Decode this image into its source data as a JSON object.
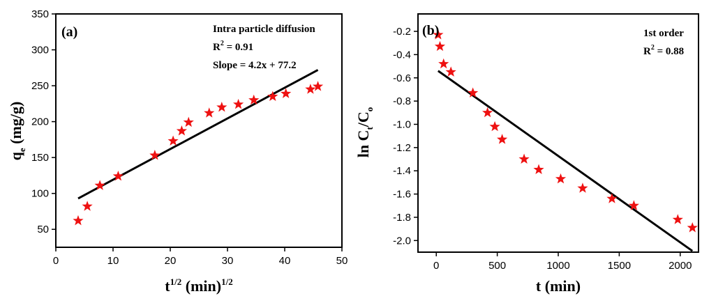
{
  "chart_data": [
    {
      "type": "scatter",
      "panel_label": "(a)",
      "xlabel_base": "t",
      "xlabel_sup": "1/2",
      "xlabel_rest": " (min)",
      "xlabel_sup2": "1/2",
      "ylabel_base": "q",
      "ylabel_sub": "e",
      "ylabel_rest": " (mg/g)",
      "xlim": [
        0,
        50
      ],
      "ylim": [
        25,
        350
      ],
      "xticks": [
        0,
        10,
        20,
        30,
        40,
        50
      ],
      "yticks": [
        50,
        100,
        150,
        200,
        250,
        300,
        350
      ],
      "annotation": {
        "title": "Intra particle diffusion",
        "r2_label": "R",
        "r2_sup": "2",
        "r2_value": " = 0.91",
        "slope_text": "Slope = 4.2x + 77.2"
      },
      "series": [
        {
          "x": [
            3.9,
            5.5,
            7.7,
            10.9,
            17.3,
            20.5,
            22.0,
            23.2,
            26.8,
            29.0,
            31.9,
            34.6,
            37.9,
            40.2,
            44.5,
            45.8
          ],
          "y": [
            62,
            82,
            111,
            124,
            153,
            173,
            187,
            199,
            212,
            220,
            224,
            230,
            235,
            239,
            245,
            249
          ]
        }
      ],
      "fit_line": {
        "x": [
          3.9,
          45.8
        ],
        "y": [
          93,
          272
        ]
      }
    },
    {
      "type": "scatter",
      "panel_label": "(b)",
      "xlabel_text": "t (min)",
      "ylabel_base": "ln C",
      "ylabel_sub1": "t",
      "ylabel_mid": "/C",
      "ylabel_sub2": "o",
      "xlim": [
        -150,
        2150
      ],
      "ylim": [
        -2.1,
        -0.05
      ],
      "xticks": [
        0,
        500,
        1000,
        1500,
        2000
      ],
      "yticks": [
        -2.0,
        -1.8,
        -1.6,
        -1.4,
        -1.2,
        -1.0,
        -0.8,
        -0.6,
        -0.4,
        -0.2
      ],
      "ytick_labels": [
        "-2.0",
        "-1.8",
        "-1.6",
        "-1.4",
        "-1.2",
        "-1.0",
        "-0.8",
        "-0.6",
        "-0.4",
        "-0.2"
      ],
      "annotation": {
        "title": "1st order",
        "r2_label": "R",
        "r2_sup": "2",
        "r2_value": " = 0.88"
      },
      "series": [
        {
          "x": [
            15,
            30,
            60,
            120,
            300,
            420,
            480,
            540,
            720,
            840,
            1020,
            1200,
            1440,
            1620,
            1980,
            2100
          ],
          "y": [
            -0.23,
            -0.33,
            -0.48,
            -0.55,
            -0.73,
            -0.9,
            -1.02,
            -1.13,
            -1.3,
            -1.39,
            -1.47,
            -1.55,
            -1.64,
            -1.7,
            -1.82,
            -1.89
          ]
        }
      ],
      "fit_line": {
        "x": [
          15,
          2100
        ],
        "y": [
          -0.54,
          -2.09
        ]
      }
    }
  ]
}
